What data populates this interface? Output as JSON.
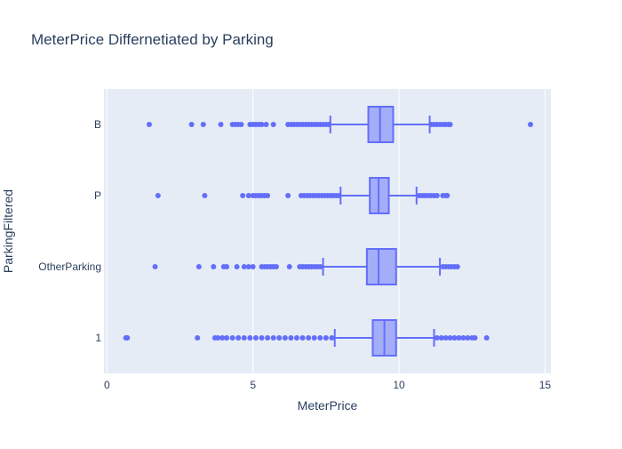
{
  "chart_data": {
    "type": "box",
    "orientation": "horizontal",
    "title": "MeterPrice Differnetiated by Parking",
    "xlabel": "MeterPrice",
    "ylabel": "ParkingFiltered",
    "xlim": [
      -0.1,
      15.2
    ],
    "xticks": [
      0,
      5,
      10,
      15
    ],
    "grid": true,
    "legend": "none",
    "color": "#636efa",
    "categories": [
      "1",
      "OtherParking",
      "P",
      "B"
    ],
    "boxes": [
      {
        "name": "1",
        "lowerfence": 7.8,
        "q1": 9.1,
        "median": 9.5,
        "q3": 9.9,
        "upperfence": 11.2,
        "outliers": [
          0.65,
          0.7,
          3.1,
          3.7,
          3.8,
          3.95,
          4.1,
          4.3,
          4.5,
          4.7,
          4.9,
          5.1,
          5.3,
          5.5,
          5.7,
          5.9,
          6.1,
          6.3,
          6.5,
          6.7,
          6.9,
          7.1,
          7.3,
          7.5,
          7.7,
          11.3,
          11.45,
          11.6,
          11.75,
          11.9,
          12.05,
          12.2,
          12.35,
          12.5,
          12.6,
          13.0
        ]
      },
      {
        "name": "OtherParking",
        "lowerfence": 7.4,
        "q1": 8.9,
        "median": 9.3,
        "q3": 9.9,
        "upperfence": 11.4,
        "outliers": [
          1.65,
          3.15,
          3.65,
          4.0,
          4.1,
          4.45,
          4.7,
          4.85,
          5.0,
          5.3,
          5.4,
          5.5,
          5.6,
          5.7,
          5.8,
          6.25,
          6.6,
          6.7,
          6.8,
          6.9,
          7.0,
          7.1,
          7.2,
          7.3,
          11.5,
          11.6,
          11.7,
          11.8,
          11.9,
          12.0
        ]
      },
      {
        "name": "P",
        "lowerfence": 8.0,
        "q1": 9.0,
        "median": 9.3,
        "q3": 9.65,
        "upperfence": 10.6,
        "outliers": [
          1.75,
          3.35,
          4.65,
          4.85,
          5.0,
          5.1,
          5.2,
          5.3,
          5.4,
          5.5,
          6.2,
          6.65,
          6.75,
          6.85,
          6.95,
          7.05,
          7.15,
          7.25,
          7.35,
          7.45,
          7.55,
          7.65,
          7.75,
          7.85,
          7.95,
          10.7,
          10.8,
          10.9,
          11.0,
          11.1,
          11.2,
          11.3,
          11.5,
          11.6,
          11.65
        ]
      },
      {
        "name": "B",
        "lowerfence": 7.65,
        "q1": 8.95,
        "median": 9.35,
        "q3": 9.8,
        "upperfence": 11.05,
        "outliers": [
          1.45,
          2.9,
          3.3,
          3.9,
          4.3,
          4.4,
          4.5,
          4.6,
          4.9,
          5.0,
          5.1,
          5.2,
          5.3,
          5.45,
          5.7,
          6.2,
          6.3,
          6.4,
          6.5,
          6.6,
          6.7,
          6.8,
          6.9,
          7.0,
          7.1,
          7.2,
          7.3,
          7.4,
          7.5,
          7.6,
          11.1,
          11.2,
          11.3,
          11.4,
          11.5,
          11.6,
          11.7,
          11.75,
          14.5
        ]
      }
    ]
  }
}
